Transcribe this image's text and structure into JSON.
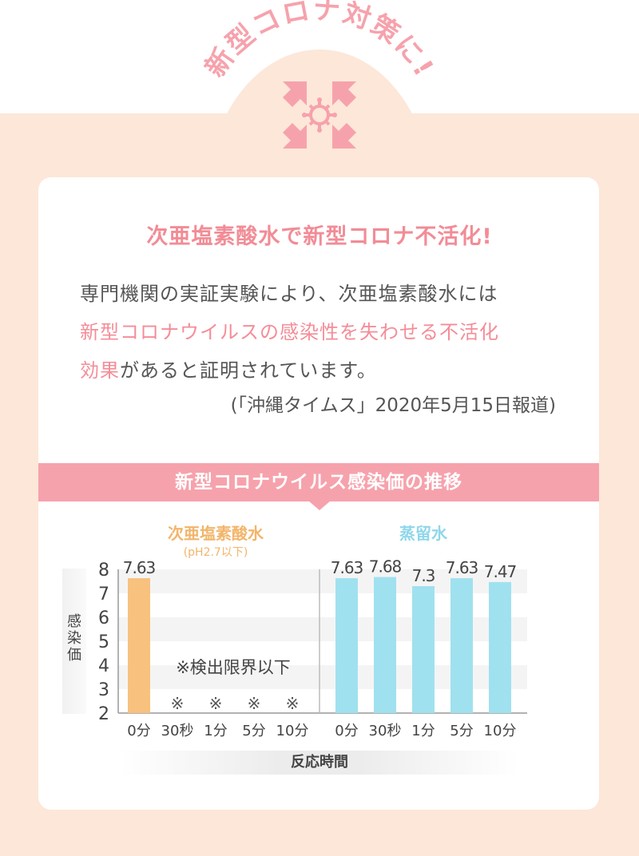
{
  "header": {
    "arc_title": "新型コロナ対策に!",
    "accent_color": "#f6a2ac",
    "icon": "virus-compress-icon"
  },
  "card": {
    "headline": "次亜塩素酸水で新型コロナ不活化!",
    "paragraph": {
      "line1": "専門機関の実証実験により、次亜塩素酸水には",
      "line2_highlight": "新型コロナウイルスの感染性を失わせる不活化",
      "line3_highlight": "効果",
      "line3_rest": "があると証明されています。"
    },
    "source": "(「沖縄タイムス」2020年5月15日報道)"
  },
  "chart_banner": "新型コロナウイルス感染価の推移",
  "chart_data": {
    "type": "bar",
    "ylabel": "感染価",
    "xlabel": "反応時間",
    "ylim": [
      2,
      8
    ],
    "yticks": [
      8,
      7,
      6,
      5,
      4,
      3,
      2
    ],
    "grid": "horizontal bands",
    "groups": [
      {
        "name": "次亜塩素酸水",
        "subtitle": "(pH2.7以下)",
        "color": "#f8c17e",
        "categories": [
          "0分",
          "30秒",
          "1分",
          "5分",
          "10分"
        ],
        "values": [
          7.63,
          null,
          null,
          null,
          null
        ],
        "value_labels": [
          "7.63",
          "※",
          "※",
          "※",
          "※"
        ],
        "note": "※検出限界以下"
      },
      {
        "name": "蒸留水",
        "color": "#a0e1ef",
        "title_color": "#8fd7ea",
        "categories": [
          "0分",
          "30秒",
          "1分",
          "5分",
          "10分"
        ],
        "values": [
          7.63,
          7.68,
          7.3,
          7.63,
          7.47
        ],
        "value_labels": [
          "7.63",
          "7.68",
          "7.3",
          "7.63",
          "7.47"
        ]
      }
    ]
  }
}
